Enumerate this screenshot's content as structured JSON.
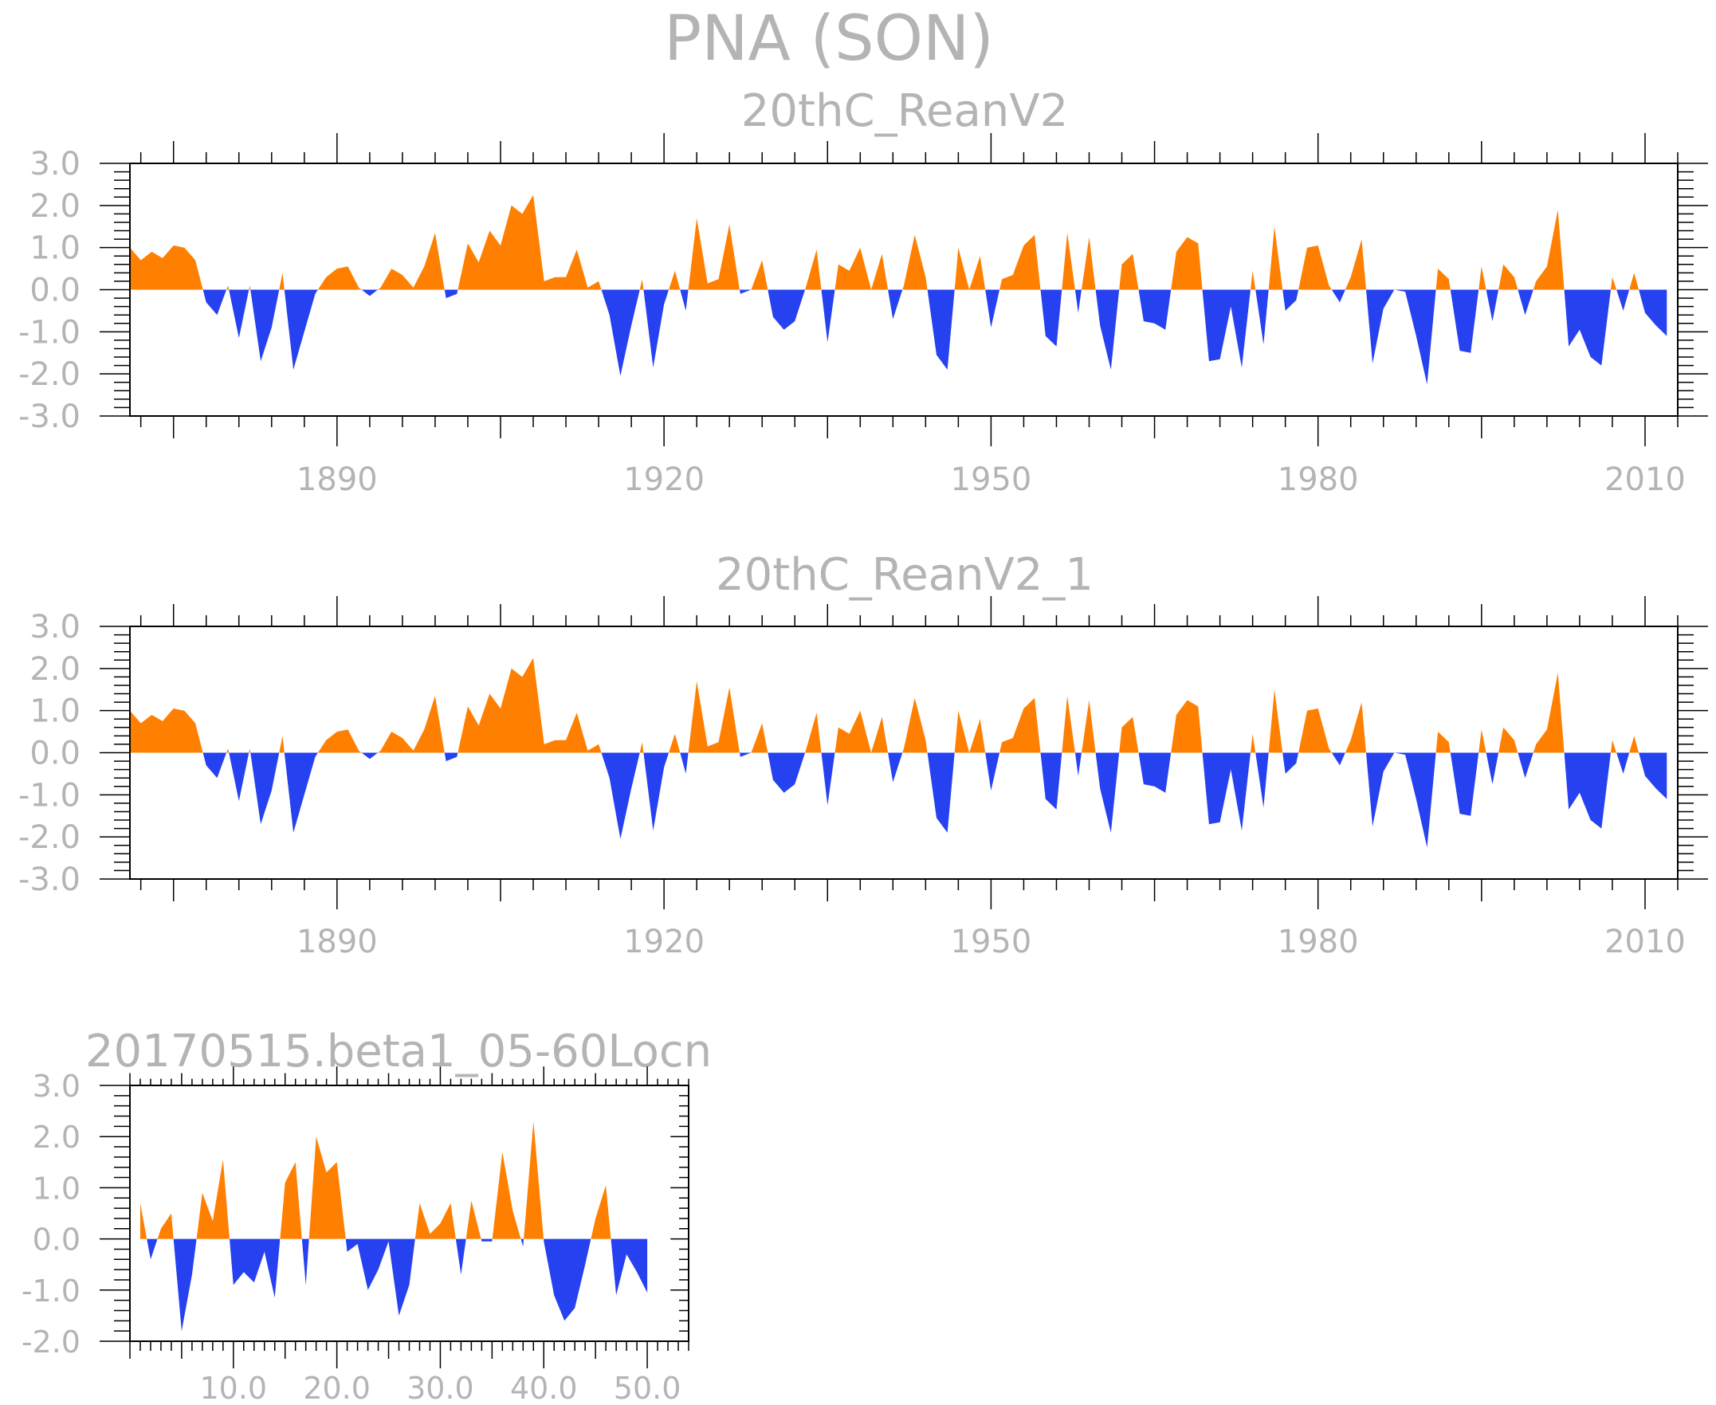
{
  "figure_title": "PNA (SON)",
  "colors": {
    "positive": "#ff8000",
    "negative": "#2641f0",
    "axis": "#000000",
    "text": "#b4b4b4"
  },
  "chart_data": [
    {
      "type": "area",
      "title": "20thC_ReanV2",
      "xlim": [
        1871,
        2013
      ],
      "ylim": [
        -3.0,
        3.0
      ],
      "x_ticks": [
        1890,
        1920,
        1950,
        1980,
        2010
      ],
      "x_tick_labels": [
        "1890",
        "1920",
        "1950",
        "1980",
        "2010"
      ],
      "y_ticks": [
        3.0,
        2.0,
        1.0,
        0.0,
        -1.0,
        -2.0,
        -3.0
      ],
      "y_tick_labels": [
        "3.0",
        "2.0",
        "1.0",
        "0.0",
        "-1.0",
        "-2.0",
        "-3.0"
      ],
      "x_start": 1871,
      "values": [
        1.0,
        0.7,
        0.9,
        0.75,
        1.05,
        1.0,
        0.7,
        -0.3,
        -0.6,
        0.1,
        -1.15,
        0.1,
        -1.7,
        -0.9,
        0.4,
        -1.9,
        -1.0,
        -0.1,
        0.3,
        0.5,
        0.55,
        0.05,
        -0.15,
        0.05,
        0.5,
        0.35,
        0.05,
        0.55,
        1.35,
        -0.2,
        -0.1,
        1.1,
        0.65,
        1.4,
        1.05,
        2.0,
        1.8,
        2.25,
        0.2,
        0.3,
        0.3,
        0.95,
        0.05,
        0.2,
        -0.6,
        -2.05,
        -0.85,
        0.25,
        -1.85,
        -0.35,
        0.45,
        -0.5,
        1.7,
        0.15,
        0.25,
        1.55,
        -0.1,
        0.0,
        0.7,
        -0.65,
        -0.95,
        -0.75,
        0.05,
        0.95,
        -1.25,
        0.6,
        0.45,
        1.0,
        0.0,
        0.85,
        -0.7,
        0.1,
        1.3,
        0.3,
        -1.55,
        -1.9,
        1.0,
        0.0,
        0.8,
        -0.9,
        0.25,
        0.35,
        1.05,
        1.3,
        -1.1,
        -1.35,
        1.35,
        -0.55,
        1.25,
        -0.85,
        -1.9,
        0.6,
        0.85,
        -0.75,
        -0.8,
        -0.95,
        0.9,
        1.25,
        1.1,
        -1.7,
        -1.65,
        -0.4,
        -1.85,
        0.45,
        -1.3,
        1.5,
        -0.5,
        -0.25,
        1.0,
        1.05,
        0.1,
        -0.3,
        0.3,
        1.2,
        -1.75,
        -0.45,
        0.0,
        -0.05,
        -1.1,
        -2.25,
        0.5,
        0.25,
        -1.45,
        -1.5,
        0.55,
        -0.75,
        0.6,
        0.3,
        -0.6,
        0.2,
        0.55,
        1.9,
        -1.35,
        -0.95,
        -1.6,
        -1.8,
        0.3,
        -0.5,
        0.4,
        -0.55,
        -0.85,
        -1.1
      ]
    },
    {
      "type": "area",
      "title": "20thC_ReanV2_1",
      "xlim": [
        1871,
        2013
      ],
      "ylim": [
        -3.0,
        3.0
      ],
      "x_ticks": [
        1890,
        1920,
        1950,
        1980,
        2010
      ],
      "x_tick_labels": [
        "1890",
        "1920",
        "1950",
        "1980",
        "2010"
      ],
      "y_ticks": [
        3.0,
        2.0,
        1.0,
        0.0,
        -1.0,
        -2.0,
        -3.0
      ],
      "y_tick_labels": [
        "3.0",
        "2.0",
        "1.0",
        "0.0",
        "-1.0",
        "-2.0",
        "-3.0"
      ],
      "x_start": 1871,
      "values": [
        1.0,
        0.7,
        0.9,
        0.75,
        1.05,
        1.0,
        0.7,
        -0.3,
        -0.6,
        0.1,
        -1.15,
        0.1,
        -1.7,
        -0.9,
        0.4,
        -1.9,
        -1.0,
        -0.1,
        0.3,
        0.5,
        0.55,
        0.05,
        -0.15,
        0.05,
        0.5,
        0.35,
        0.05,
        0.55,
        1.35,
        -0.2,
        -0.1,
        1.1,
        0.65,
        1.4,
        1.05,
        2.0,
        1.8,
        2.25,
        0.2,
        0.3,
        0.3,
        0.95,
        0.05,
        0.2,
        -0.6,
        -2.05,
        -0.85,
        0.25,
        -1.85,
        -0.35,
        0.45,
        -0.5,
        1.7,
        0.15,
        0.25,
        1.55,
        -0.1,
        0.0,
        0.7,
        -0.65,
        -0.95,
        -0.75,
        0.05,
        0.95,
        -1.25,
        0.6,
        0.45,
        1.0,
        0.0,
        0.85,
        -0.7,
        0.1,
        1.3,
        0.3,
        -1.55,
        -1.9,
        1.0,
        0.0,
        0.8,
        -0.9,
        0.25,
        0.35,
        1.05,
        1.3,
        -1.1,
        -1.35,
        1.35,
        -0.55,
        1.25,
        -0.85,
        -1.9,
        0.6,
        0.85,
        -0.75,
        -0.8,
        -0.95,
        0.9,
        1.25,
        1.1,
        -1.7,
        -1.65,
        -0.4,
        -1.85,
        0.45,
        -1.3,
        1.5,
        -0.5,
        -0.25,
        1.0,
        1.05,
        0.1,
        -0.3,
        0.3,
        1.2,
        -1.75,
        -0.45,
        0.0,
        -0.05,
        -1.1,
        -2.25,
        0.5,
        0.25,
        -1.45,
        -1.5,
        0.55,
        -0.75,
        0.6,
        0.3,
        -0.6,
        0.2,
        0.55,
        1.9,
        -1.35,
        -0.95,
        -1.6,
        -1.8,
        0.3,
        -0.5,
        0.4,
        -0.55,
        -0.85,
        -1.1
      ]
    },
    {
      "type": "area",
      "title": "20170515.beta1_05-60Locn",
      "xlim": [
        0,
        54
      ],
      "ylim": [
        -2.0,
        3.0
      ],
      "x_ticks": [
        10,
        20,
        30,
        40,
        50
      ],
      "x_tick_labels": [
        "10.0",
        "20.0",
        "30.0",
        "40.0",
        "50.0"
      ],
      "y_ticks": [
        3.0,
        2.0,
        1.0,
        0.0,
        -1.0,
        -2.0
      ],
      "y_tick_labels": [
        "3.0",
        "2.0",
        "1.0",
        "0.0",
        "-1.0",
        "-2.0"
      ],
      "x_start": 1,
      "values": [
        0.7,
        -0.4,
        0.2,
        0.5,
        -1.8,
        -0.7,
        0.9,
        0.35,
        1.55,
        -0.9,
        -0.65,
        -0.85,
        -0.25,
        -1.15,
        1.1,
        1.5,
        -0.9,
        2.0,
        1.3,
        1.5,
        -0.25,
        -0.1,
        -1.0,
        -0.6,
        -0.05,
        -1.5,
        -0.9,
        0.7,
        0.1,
        0.3,
        0.7,
        -0.7,
        0.75,
        -0.05,
        -0.05,
        1.7,
        0.55,
        -0.15,
        2.3,
        -0.05,
        -1.1,
        -1.6,
        -1.35,
        -0.5,
        0.4,
        1.05,
        -1.1,
        -0.3,
        -0.65,
        -1.05
      ]
    }
  ]
}
